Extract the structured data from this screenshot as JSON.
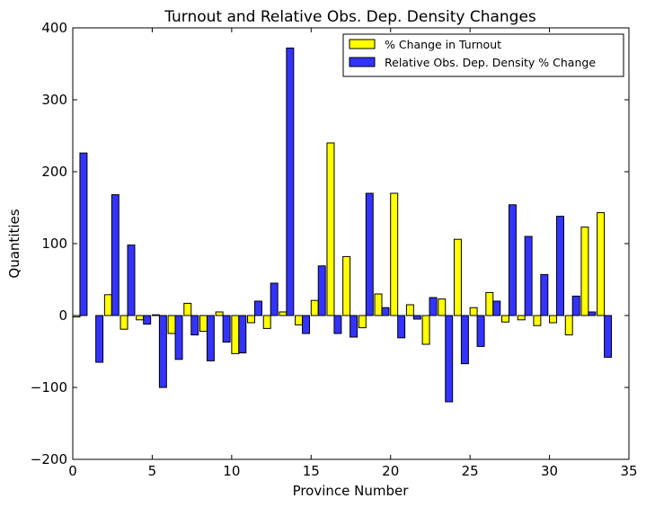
{
  "chart_data": {
    "type": "bar",
    "title": "Turnout and Relative Obs. Dep. Density Changes",
    "xlabel": "Province Number",
    "ylabel": "Quantities",
    "xlim": [
      0,
      35
    ],
    "ylim": [
      -200,
      400
    ],
    "xticks": [
      "0",
      "5",
      "10",
      "15",
      "20",
      "25",
      "30",
      "35"
    ],
    "xtick_values": [
      0,
      5,
      10,
      15,
      20,
      25,
      30,
      35
    ],
    "yticks": [
      "400",
      "300",
      "200",
      "100",
      "0",
      "−100",
      "−200"
    ],
    "ytick_values": [
      400,
      300,
      200,
      100,
      0,
      -100,
      -200
    ],
    "grid": false,
    "legend_position": "top-right",
    "bar_width": 0.45,
    "x": [
      0,
      1,
      2,
      3,
      4,
      5,
      6,
      7,
      8,
      9,
      10,
      11,
      12,
      13,
      14,
      15,
      16,
      17,
      18,
      19,
      20,
      21,
      22,
      23,
      24,
      25,
      26,
      27,
      28,
      29,
      30,
      31,
      32,
      33
    ],
    "series": [
      {
        "name": "% Change in Turnout",
        "color": "#ffff00",
        "values": [
          -2,
          0,
          29,
          -19,
          -6,
          1,
          -25,
          17,
          -22,
          5,
          -53,
          -10,
          -18,
          5,
          -13,
          21,
          240,
          82,
          -17,
          30,
          170,
          15,
          -40,
          23,
          106,
          11,
          32,
          -9,
          -6,
          -14,
          -10,
          -27,
          123,
          143
        ]
      },
      {
        "name": "Relative Obs. Dep. Density % Change",
        "color": "#3333ff",
        "values": [
          226,
          -65,
          168,
          98,
          -12,
          -100,
          -61,
          -27,
          -63,
          -37,
          -52,
          20,
          45,
          372,
          -25,
          69,
          -25,
          -30,
          170,
          11,
          -31,
          -5,
          25,
          -120,
          -67,
          -43,
          20,
          154,
          110,
          57,
          138,
          27,
          5,
          -58
        ]
      }
    ]
  }
}
